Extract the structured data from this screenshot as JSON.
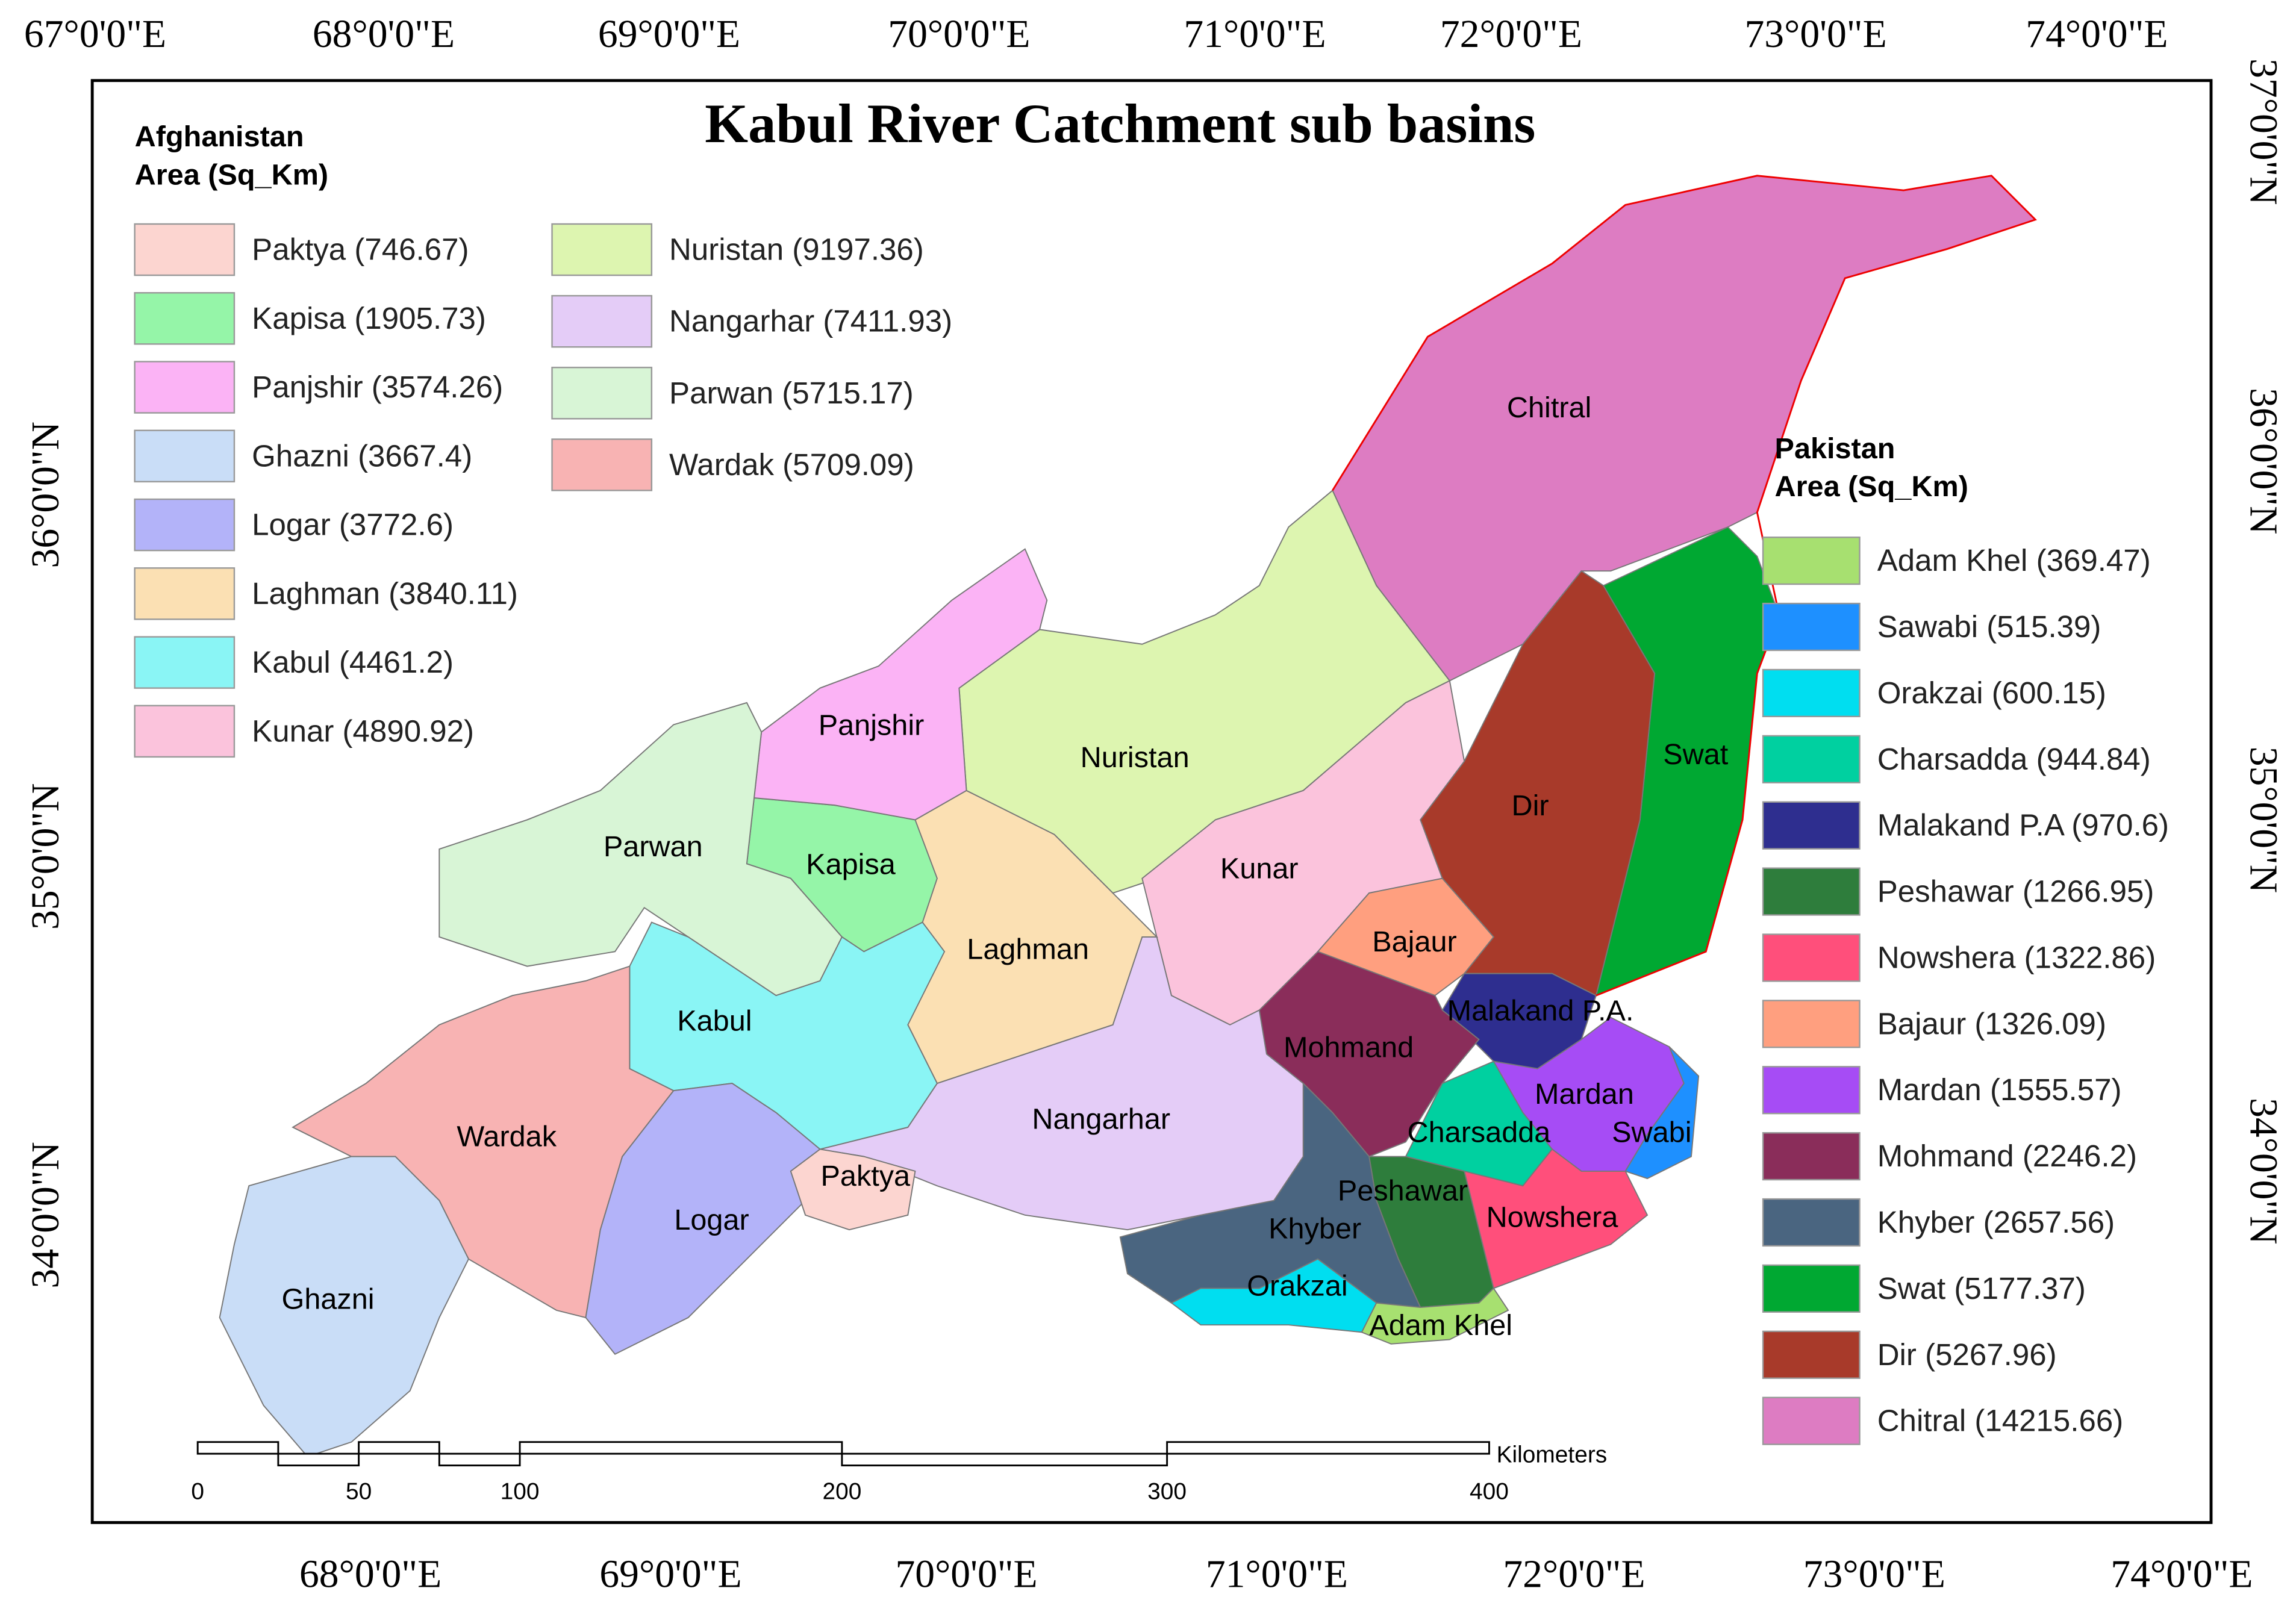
{
  "title": "Kabul River Catchment sub basins",
  "afghanistan_legend": {
    "heading": [
      "Afghanistan",
      "Area (Sq_Km)"
    ],
    "items": [
      {
        "label": "Paktya (746.67)",
        "color": "#fcd5d0"
      },
      {
        "label": "Kapisa (1905.73)",
        "color": "#95f5a8"
      },
      {
        "label": "Panjshir (3574.26)",
        "color": "#fbb3f5"
      },
      {
        "label": "Ghazni (3667.4)",
        "color": "#c9ddf7"
      },
      {
        "label": "Logar (3772.6)",
        "color": "#b3b3f9"
      },
      {
        "label": "Laghman (3840.11)",
        "color": "#fbe0b3"
      },
      {
        "label": "Kabul (4461.2)",
        "color": "#8af5f5"
      },
      {
        "label": "Kunar (4890.92)",
        "color": "#fbc3dc"
      },
      {
        "label": "Nuristan (9197.36)",
        "color": "#ddf5b0"
      },
      {
        "label": "Nangarhar (7411.93)",
        "color": "#e4ccf7"
      },
      {
        "label": "Parwan (5715.17)",
        "color": "#d8f5d6"
      },
      {
        "label": "Wardak (5709.09)",
        "color": "#f8b3b3"
      }
    ]
  },
  "pakistan_legend": {
    "heading": [
      "Pakistan",
      "Area (Sq_Km)"
    ],
    "items": [
      {
        "label": "Adam Khel (369.47)",
        "color": "#a7e070"
      },
      {
        "label": "Sawabi (515.39)",
        "color": "#1e90ff"
      },
      {
        "label": "Orakzai (600.15)",
        "color": "#00def0"
      },
      {
        "label": "Charsadda (944.84)",
        "color": "#00d0a0"
      },
      {
        "label": "Malakand P.A (970.6)",
        "color": "#2e2e8f"
      },
      {
        "label": "Peshawar (1266.95)",
        "color": "#2e7d3c"
      },
      {
        "label": "Nowshera (1322.86)",
        "color": "#ff4f7b"
      },
      {
        "label": "Bajaur (1326.09)",
        "color": "#ff9f7f"
      },
      {
        "label": "Mardan (1555.57)",
        "color": "#a64cf5"
      },
      {
        "label": "Mohmand (2246.2)",
        "color": "#8a2d5a"
      },
      {
        "label": "Khyber (2657.56)",
        "color": "#4a6580"
      },
      {
        "label": "Swat (5177.37)",
        "color": "#00a832"
      },
      {
        "label": "Dir (5267.96)",
        "color": "#a83a2a"
      },
      {
        "label": "Chitral (14215.66)",
        "color": "#dd7cc2"
      }
    ]
  },
  "regions": [
    "Chitral",
    "Swat",
    "Dir",
    "Nuristan",
    "Kunar",
    "Bajaur",
    "Malakand P.A.",
    "Mohmand",
    "Mardan",
    "Swabi",
    "Charsadda",
    "Nowshera",
    "Peshawar",
    "Khyber",
    "Orakzai",
    "Adam Khel",
    "Nangarhar",
    "Laghman",
    "Kapisa",
    "Panjshir",
    "Parwan",
    "Kabul",
    "Wardak",
    "Logar",
    "Ghazni",
    "Paktya"
  ],
  "top_axis": [
    "67°0'0\"E",
    "68°0'0\"E",
    "69°0'0\"E",
    "70°0'0\"E",
    "71°0'0\"E",
    "72°0'0\"E",
    "73°0'0\"E",
    "74°0'0\"E"
  ],
  "bottom_axis": [
    "68°0'0\"E",
    "69°0'0\"E",
    "70°0'0\"E",
    "71°0'0\"E",
    "72°0'0\"E",
    "73°0'0\"E",
    "74°0'0\"E"
  ],
  "left_axis": [
    "36°0'0\"N",
    "35°0'0\"N",
    "34°0'0\"N"
  ],
  "right_axis": [
    "37°0'0\"N",
    "36°0'0\"N",
    "35°0'0\"N",
    "34°0'0\"N"
  ],
  "scale_bar": {
    "unit": "Kilometers",
    "labels": [
      "0",
      "50",
      "100",
      "200",
      "300",
      "400"
    ]
  }
}
